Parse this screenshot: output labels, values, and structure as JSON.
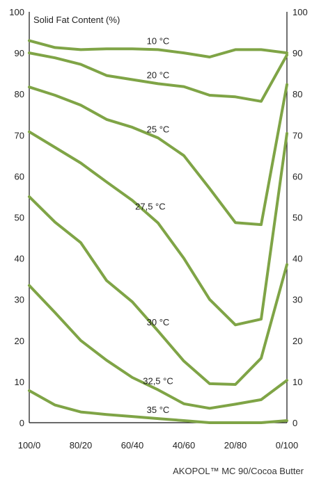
{
  "chart_data": {
    "type": "line",
    "ylabel": "Solid Fat Content (%)",
    "xlabel": "AKOPOL™ MC 90/Cocoa Butter",
    "ylim": [
      0,
      100
    ],
    "yticks": [
      0,
      10,
      20,
      30,
      40,
      50,
      60,
      70,
      80,
      90,
      100
    ],
    "xlim": [
      0,
      100
    ],
    "xticks": [
      {
        "value": 0,
        "label": "100/0"
      },
      {
        "value": 20,
        "label": "80/20"
      },
      {
        "value": 40,
        "label": "60/40"
      },
      {
        "value": 60,
        "label": "40/60"
      },
      {
        "value": 80,
        "label": "20/80"
      },
      {
        "value": 100,
        "label": "0/100"
      }
    ],
    "grid": false,
    "line_color": "#7fa446",
    "x": [
      0,
      10,
      20,
      30,
      40,
      50,
      60,
      70,
      80,
      90,
      100
    ],
    "series": [
      {
        "name": "10 °C",
        "values": [
          93.0,
          91.3,
          90.8,
          91.0,
          91.0,
          90.8,
          90.0,
          89.0,
          90.8,
          90.8,
          90.0
        ]
      },
      {
        "name": "20 °C",
        "values": [
          90.0,
          88.8,
          87.2,
          84.5,
          83.5,
          82.5,
          81.8,
          79.7,
          79.3,
          78.2,
          89.5
        ]
      },
      {
        "name": "25 °C",
        "values": [
          81.7,
          79.7,
          77.3,
          73.8,
          71.9,
          69.3,
          65.0,
          57.0,
          48.7,
          48.2,
          82.3
        ]
      },
      {
        "name": "27,5 °C",
        "values": [
          70.8,
          67.0,
          63.2,
          58.6,
          54.1,
          48.6,
          40.0,
          30.0,
          23.8,
          25.2,
          70.4
        ]
      },
      {
        "name": "30 °C",
        "values": [
          55.0,
          48.8,
          43.8,
          34.6,
          29.4,
          22.3,
          15.0,
          9.5,
          9.3,
          15.7,
          38.5
        ]
      },
      {
        "name": "32,5 °C",
        "values": [
          33.4,
          26.8,
          20.0,
          15.2,
          11.0,
          8.0,
          4.6,
          3.5,
          4.5,
          5.6,
          10.3
        ]
      },
      {
        "name": "35 °C",
        "values": [
          7.8,
          4.3,
          2.6,
          2.0,
          1.5,
          1.0,
          0.5,
          0.0,
          0.0,
          0.0,
          0.5
        ]
      }
    ],
    "series_label_positions": [
      {
        "name": "10 °C",
        "x": 50,
        "y": 90.8
      },
      {
        "name": "20 °C",
        "x": 50,
        "y": 82.5
      },
      {
        "name": "25 °C",
        "x": 50,
        "y": 69.3
      },
      {
        "name": "27,5 °C",
        "x": 47,
        "y": 50.5
      },
      {
        "name": "30 °C",
        "x": 50,
        "y": 22.3
      },
      {
        "name": "32,5 °C",
        "x": 50,
        "y": 8.0
      },
      {
        "name": "35 °C",
        "x": 50,
        "y": 1.0
      }
    ]
  }
}
